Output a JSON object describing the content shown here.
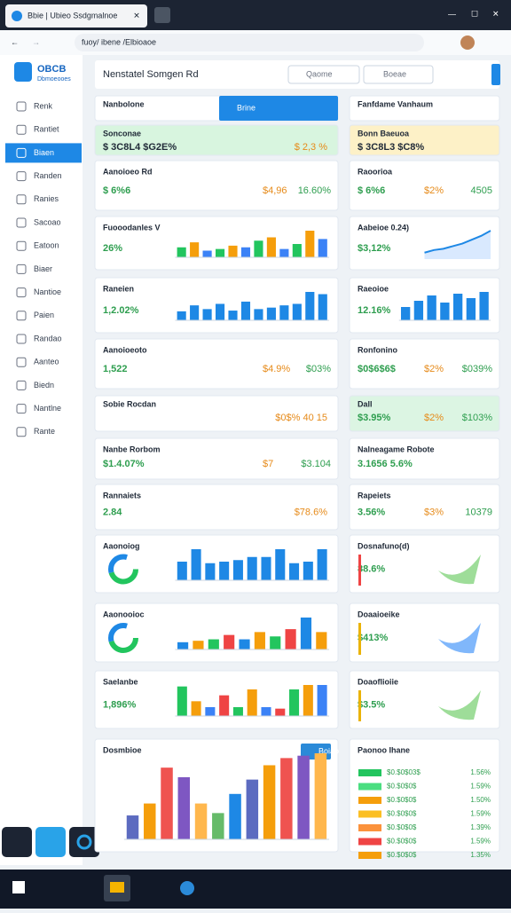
{
  "browser": {
    "tab_title": "Bbie | Ubieo Ssdgmalnoe",
    "url": "fuoy/ ibene /Elbioaoe"
  },
  "sidebar": {
    "brand": "OBCB",
    "brand_sub": "Dbmoeooes",
    "items": [
      "Renk",
      "Rantiet",
      "Biaen",
      "Randen",
      "Ranies",
      "Sacoao",
      "Eatoon",
      "Biaer",
      "Nantioe",
      "Paien",
      "Randao",
      "Aanteo",
      "Biedn",
      "Nantlne",
      "Rante"
    ]
  },
  "header": {
    "title": "Nenstatel Somgen Rd",
    "search": "Qaome",
    "button": "Boeae"
  },
  "left": [
    {
      "title": "Nanbolone",
      "button": "Brine"
    },
    {
      "title": "Sonconae",
      "value": "$ 3C8L4 $G2E%",
      "value2": "$ 2,3 %"
    },
    {
      "title": "Aanoioeo Rd",
      "value": "$ 6%6",
      "value2": "$4,96",
      "value3": "16.60%"
    },
    {
      "title": "Fuooodanles V",
      "value": "26%",
      "bars": [
        30,
        45,
        20,
        25,
        35,
        30,
        50,
        60,
        25,
        40,
        80,
        55
      ],
      "colors": [
        "#22c55e",
        "#f59e0b",
        "#3b82f6",
        "#22c55e",
        "#f59e0b",
        "#3b82f6"
      ]
    },
    {
      "title": "Raneien",
      "value": "1,2.02%",
      "bars": [
        12,
        20,
        15,
        22,
        13,
        25,
        15,
        17,
        20,
        22,
        38,
        35
      ],
      "colors": [
        "#1e88e5"
      ]
    },
    {
      "title": "Aanoioeoto",
      "value": "1,522",
      "value2": "$4.9%",
      "value3": "$03%"
    },
    {
      "title": "Sobie Rocdan",
      "value2": "$0$% 40 15"
    },
    {
      "title": "Nanbe Rorbom",
      "value": "$1.4.07%",
      "value2": "$7",
      "value3": "$3.104"
    },
    {
      "title": "Rannaiets",
      "value": "2.84",
      "value2": "$78.6%"
    },
    {
      "title": "Aaonoiog",
      "bars": [
        12,
        20,
        11,
        12,
        13,
        15,
        15,
        20,
        11,
        12,
        20
      ],
      "colors": [
        "#1e88e5"
      ]
    },
    {
      "title": "Aaonooioc",
      "bars": [
        5,
        6,
        7,
        10,
        7,
        12,
        9,
        14,
        22,
        12
      ],
      "colors": [
        "#1e88e5",
        "#f59e0b",
        "#22c55e",
        "#ef4444"
      ]
    },
    {
      "title": "Saelanbe",
      "value": "1,896%",
      "bars": [
        20,
        10,
        6,
        14,
        6,
        18,
        6,
        5,
        18,
        21,
        21
      ],
      "colors": [
        "#22c55e",
        "#f59e0b",
        "#3b82f6",
        "#ef4444"
      ]
    },
    {
      "title": "Dosmbioe",
      "button": "Boiao",
      "bars": [
        20,
        30,
        60,
        52,
        30,
        22,
        38,
        50,
        62,
        68,
        70,
        72
      ],
      "colors": [
        "#5c6bc0",
        "#f59e0b",
        "#ef5350",
        "#7e57c2",
        "#ffb74d",
        "#66bb6a",
        "#1e88e5"
      ]
    }
  ],
  "right": [
    {
      "title": "Fanfdame Vanhaum"
    },
    {
      "title": "Bonn Baeuoa",
      "value": "$ 3C8L3 $C8%"
    },
    {
      "title": "Raoorioa",
      "value": "$ 6%6",
      "value2": "$2%",
      "value3": "4505"
    },
    {
      "title": "Aabeioe 0.24)",
      "value": "$3,12%",
      "area": [
        5,
        7,
        8,
        10,
        12,
        15,
        18,
        22
      ]
    },
    {
      "title": "Raeoioe",
      "value": "12.16%",
      "bars": [
        15,
        22,
        28,
        20,
        30,
        25,
        32
      ],
      "colors": [
        "#1e88e5"
      ]
    },
    {
      "title": "Ronfonino",
      "value": "$0$6$6$",
      "value2": "$2%",
      "value3": "$039%"
    },
    {
      "title": "Dall",
      "value": "$3.95%",
      "value2": "$2%",
      "value3": "$103%"
    },
    {
      "title": "Nalneagame Robote",
      "value": "3.1656 5.6%"
    },
    {
      "title": "Rapeiets",
      "value": "3.56%",
      "value2": "$3%",
      "value3": "10379"
    },
    {
      "title": "Dosnafuno(d)",
      "value": "88.6%"
    },
    {
      "title": "Doaaioeike",
      "value": "$413%"
    },
    {
      "title": "Doaoflioiie",
      "value": "$3.5%"
    },
    {
      "title": "Paonoo Ihane",
      "list": [
        {
          "label": "$0.$0$03$",
          "value": "1.56%"
        },
        {
          "label": "$0.$0$0$",
          "value": "1.59%"
        },
        {
          "label": "$0.$0$0$",
          "value": "1.50%"
        },
        {
          "label": "$0.$0$0$",
          "value": "1.59%"
        },
        {
          "label": "$0.$0$0$",
          "value": "1.39%"
        },
        {
          "label": "$0.$0$0$",
          "value": "1.59%"
        },
        {
          "label": "$0.$0$0$",
          "value": "1.35%"
        }
      ]
    }
  ]
}
